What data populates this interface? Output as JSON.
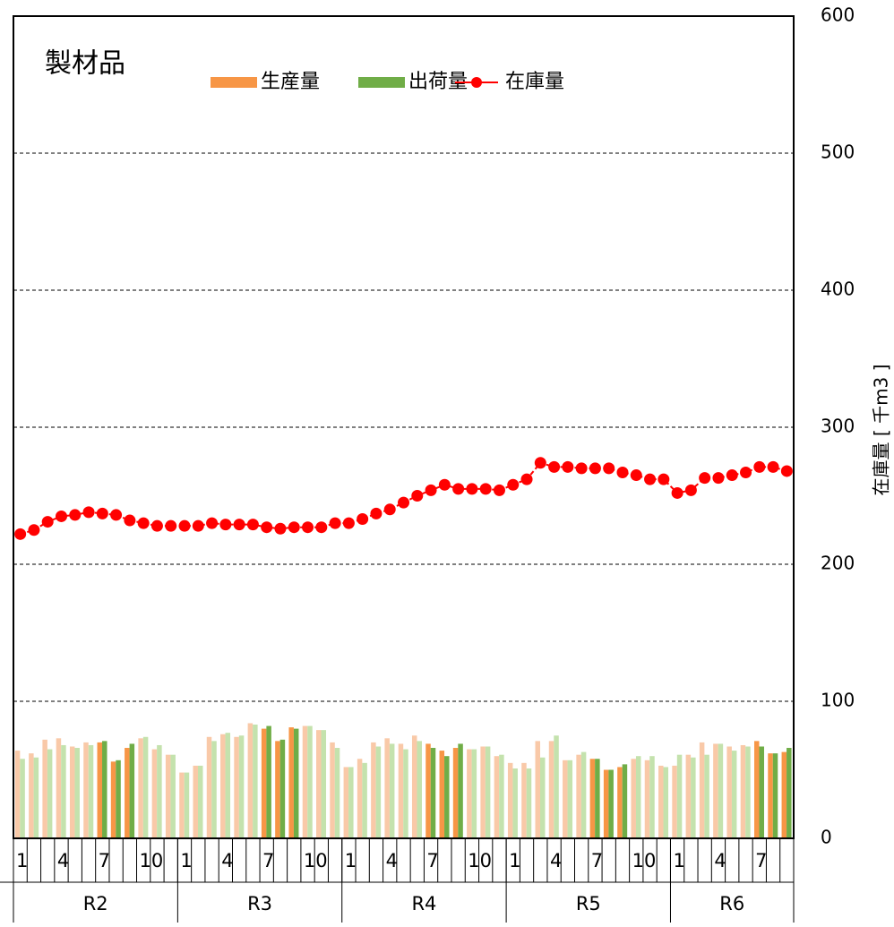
{
  "chart_data": {
    "type": "bar-line",
    "title": "製材品",
    "y_axis_label": "在庫量 [ 千m3 ]",
    "ylim": [
      0,
      600
    ],
    "yticks": [
      0,
      100,
      200,
      300,
      400,
      500,
      600
    ],
    "grid": true,
    "months": [
      "1",
      null,
      null,
      "4",
      null,
      null,
      "7",
      null,
      null,
      "10",
      null,
      null,
      "1",
      null,
      null,
      "4",
      null,
      null,
      "7",
      null,
      null,
      "10",
      null,
      null,
      "1",
      null,
      null,
      "4",
      null,
      null,
      "7",
      null,
      null,
      "10",
      null,
      null,
      "1",
      null,
      null,
      "4",
      null,
      null,
      "7",
      null,
      null,
      "10",
      null,
      null,
      "1",
      null,
      null,
      "4",
      null,
      null,
      "7",
      null,
      null
    ],
    "years": [
      {
        "label": "R2",
        "count": 12
      },
      {
        "label": "R3",
        "count": 12
      },
      {
        "label": "R4",
        "count": 12
      },
      {
        "label": "R5",
        "count": 12
      },
      {
        "label": "R6",
        "count": 9
      }
    ],
    "highlight": [
      6,
      7,
      8,
      18,
      19,
      20,
      30,
      31,
      32,
      42,
      43,
      44,
      54,
      55,
      56
    ],
    "series": [
      {
        "name": "生産量",
        "kind": "bar",
        "color": "#f79646",
        "light_color": "#f9c9a8",
        "values": [
          64,
          62,
          72,
          73,
          67,
          70,
          70,
          56,
          66,
          73,
          65,
          61,
          48,
          53,
          74,
          76,
          74,
          84,
          80,
          71,
          81,
          82,
          79,
          70,
          52,
          58,
          70,
          73,
          69,
          75,
          69,
          64,
          66,
          65,
          67,
          60,
          55,
          55,
          71,
          71,
          57,
          61,
          58,
          50,
          52,
          58,
          57,
          53,
          53,
          61,
          70,
          69,
          67,
          68,
          71,
          62,
          63
        ]
      },
      {
        "name": "出荷量",
        "kind": "bar",
        "color": "#70ad47",
        "light_color": "#c4e2ad",
        "values": [
          58,
          59,
          65,
          68,
          66,
          68,
          71,
          57,
          69,
          74,
          68,
          61,
          48,
          53,
          71,
          77,
          75,
          83,
          82,
          72,
          80,
          82,
          79,
          66,
          52,
          55,
          67,
          69,
          65,
          71,
          66,
          60,
          69,
          65,
          67,
          61,
          51,
          51,
          59,
          75,
          57,
          63,
          58,
          50,
          54,
          60,
          60,
          52,
          61,
          59,
          61,
          69,
          64,
          67,
          67,
          62,
          66
        ]
      },
      {
        "name": "在庫量",
        "kind": "line",
        "color": "#ff0000",
        "values": [
          222,
          225,
          231,
          235,
          236,
          238,
          237,
          236,
          232,
          230,
          228,
          228,
          228,
          228,
          230,
          229,
          229,
          229,
          227,
          226,
          227,
          227,
          227,
          230,
          230,
          233,
          237,
          240,
          245,
          250,
          254,
          258,
          255,
          255,
          255,
          254,
          258,
          262,
          274,
          271,
          271,
          270,
          270,
          270,
          267,
          265,
          262,
          262,
          252,
          254,
          263,
          263,
          265,
          267,
          271,
          271,
          268
        ]
      }
    ]
  }
}
